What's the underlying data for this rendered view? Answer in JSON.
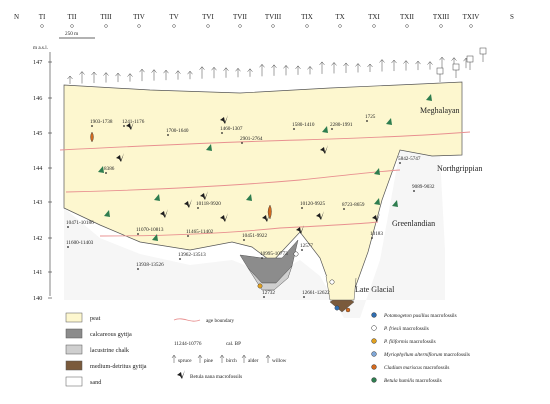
{
  "orientation": {
    "north": "N",
    "south": "S"
  },
  "transects": [
    "TI",
    "TII",
    "TIII",
    "TIV",
    "TV",
    "TVI",
    "TVII",
    "TVIII",
    "TIX",
    "TX",
    "TXI",
    "TXII",
    "TXIII",
    "TXIV"
  ],
  "scale_bar": "250 m",
  "y_axis": {
    "unit": "m a.s.l.",
    "ticks": [
      "147",
      "146",
      "145",
      "144",
      "143",
      "142",
      "141",
      "140"
    ]
  },
  "zones": [
    {
      "name": "Meghalayan"
    },
    {
      "name": "Northgrippian"
    },
    {
      "name": "Greenlandian"
    },
    {
      "name": "Late Glacial"
    }
  ],
  "dates": [
    "1903-1738",
    "1241-1176",
    "1700-1640",
    "1460-1307",
    "2901-2764",
    "1580-1410",
    "2280-1991",
    "1725",
    "5842-5747",
    "8386",
    "9089-9032",
    "10118-9920",
    "10120-9925",
    "8723-8659",
    "10471-10186",
    "11070-10813",
    "11465-11402",
    "10451-9922",
    "10183",
    "11600-11403",
    "10995-10773",
    "13962-13513",
    "13938-13526",
    "12732",
    "12661-12622",
    "12577"
  ],
  "legend": {
    "sediments": [
      {
        "label": "peat",
        "color": "#fdf7cf"
      },
      {
        "label": "calcareous gyttja",
        "color": "#8c8c8c"
      },
      {
        "label": "lacustrine chalk",
        "color": "#cfcfcf"
      },
      {
        "label": "medium-detritus gyttja",
        "color": "#7a5a3c"
      },
      {
        "label": "sand",
        "color": "#ffffff"
      }
    ],
    "age_boundary": "age boundary",
    "date_example": "11244-10776",
    "date_unit": "cal. BP",
    "trees": [
      "spruce",
      "pine",
      "birch",
      "alder",
      "willow"
    ],
    "betula_nana": "Betula nana macrofossils",
    "fossils": [
      {
        "italic": "Potamogeton pusillus",
        "rest": " macrofossils",
        "color": "#2f6db0"
      },
      {
        "italic": "P. friesii",
        "rest": " macrofossils",
        "color": "#ffffff"
      },
      {
        "italic": "P. filiformis",
        "rest": " macrofossils",
        "color": "#e0a020"
      },
      {
        "italic": "Myriophyllum alterniflorum",
        "rest": " macrofossils",
        "color": "#7fa6d6"
      },
      {
        "italic": "Cladium mariscus",
        "rest": " macrofossils",
        "color": "#d2691e"
      },
      {
        "italic": "Betula humilis",
        "rest": " macrofossils",
        "color": "#2e7d4f"
      }
    ]
  },
  "colors": {
    "peat": "#fdf7cf",
    "boundary": "#e89090",
    "nana": "#1c1c1c",
    "humilis": "#2e7d4f",
    "cladium": "#d2691e"
  }
}
